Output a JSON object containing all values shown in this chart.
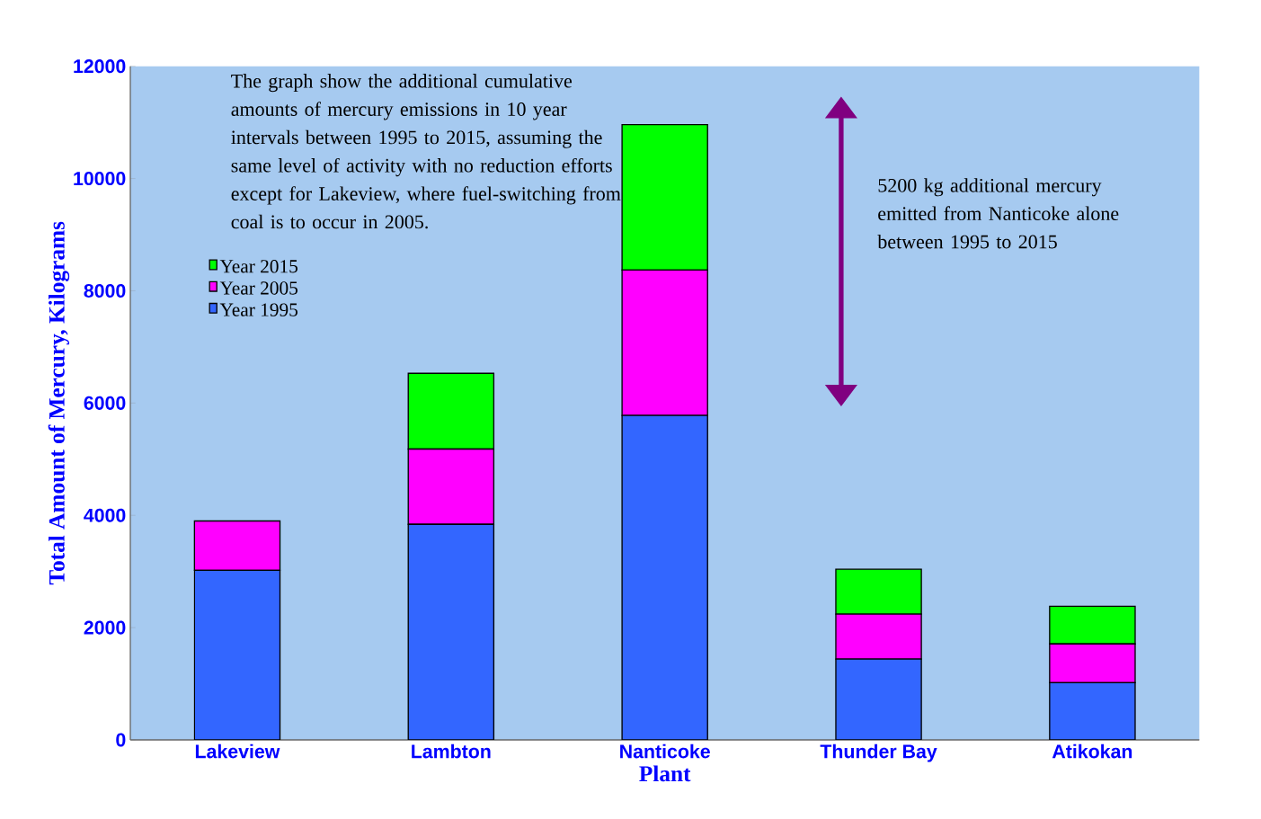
{
  "chart_data": {
    "type": "bar",
    "stacked": true,
    "xlabel": "Plant",
    "ylabel": "Total Amount of Mercury, Kilograms",
    "categories": [
      "Lakeview",
      "Lambton",
      "Nanticoke",
      "Thunder Bay",
      "Atikokan"
    ],
    "series": [
      {
        "name": "Year 1995",
        "color": "#3366ff",
        "values": [
          3020,
          3840,
          5780,
          1440,
          1020
        ]
      },
      {
        "name": "Year 2005",
        "color": "#ff00ff",
        "values": [
          880,
          1340,
          2590,
          800,
          690
        ]
      },
      {
        "name": "Year 2015",
        "color": "#00ff00",
        "values": [
          0,
          1350,
          2590,
          800,
          670
        ]
      }
    ],
    "ylim": [
      0,
      12000
    ],
    "yticks": [
      0,
      2000,
      4000,
      6000,
      8000,
      10000,
      12000
    ],
    "legend": "top left",
    "annotations": [
      "The graph show the additional cumulative amounts of  mercury emissions in 10 year intervals between 1995 to 2015, assuming the same level of activity with no reduction efforts except for Lakeview, where fuel-switching from coal is to occur in 2005.",
      "5200 kg additional mercury emitted  from Nanticoke alone between 1995 to 2015"
    ]
  }
}
